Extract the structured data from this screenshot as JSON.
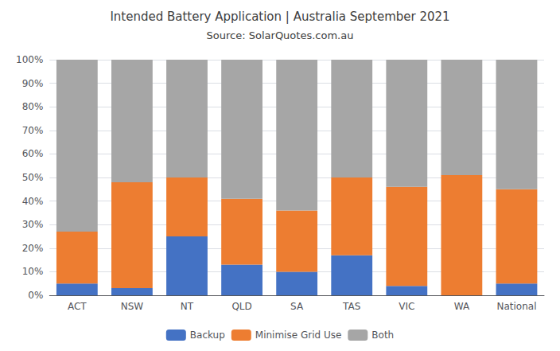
{
  "chart_data": {
    "type": "bar",
    "title": "Intended Battery Application | Australia September 2021",
    "subtitle": "Source: SolarQuotes.com.au",
    "categories": [
      "ACT",
      "NSW",
      "NT",
      "QLD",
      "SA",
      "TAS",
      "VIC",
      "WA",
      "National"
    ],
    "series": [
      {
        "name": "Backup",
        "color": "#4472c4",
        "values": [
          5,
          3,
          25,
          13,
          10,
          17,
          4,
          0,
          5
        ]
      },
      {
        "name": "Minimise Grid Use",
        "color": "#ed7d31",
        "values": [
          22,
          45,
          25,
          28,
          26,
          33,
          42,
          51,
          40
        ]
      },
      {
        "name": "Both",
        "color": "#a6a6a6",
        "values": [
          73,
          52,
          50,
          59,
          64,
          50,
          54,
          49,
          55
        ]
      }
    ],
    "stacked": true,
    "ylim": [
      0,
      100
    ],
    "yticks": [
      {
        "value": 0,
        "label": "0%"
      },
      {
        "value": 10,
        "label": "10%"
      },
      {
        "value": 20,
        "label": "20%"
      },
      {
        "value": 30,
        "label": "30%"
      },
      {
        "value": 40,
        "label": "40%"
      },
      {
        "value": 50,
        "label": "50%"
      },
      {
        "value": 60,
        "label": "60%"
      },
      {
        "value": 70,
        "label": "70%"
      },
      {
        "value": 80,
        "label": "80%"
      },
      {
        "value": 90,
        "label": "90%"
      },
      {
        "value": 100,
        "label": "100%"
      }
    ],
    "grid": true,
    "legend": "bottom"
  }
}
